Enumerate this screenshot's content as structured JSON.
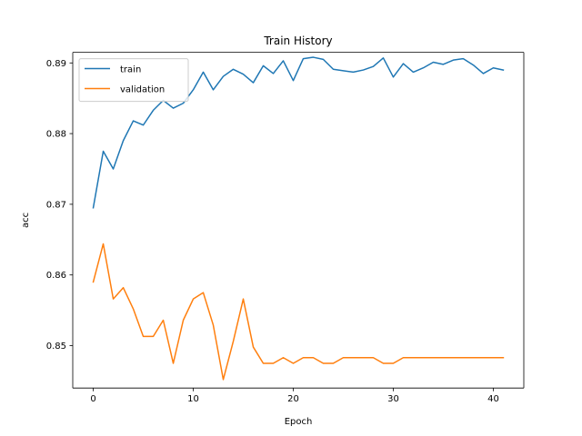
{
  "chart_data": {
    "type": "line",
    "title": "Train History",
    "xlabel": "Epoch",
    "ylabel": "acc",
    "xlim": [
      -2.05,
      43.05
    ],
    "ylim": [
      0.844,
      0.8915
    ],
    "xticks": [
      0,
      10,
      20,
      30,
      40
    ],
    "xtick_labels": [
      "0",
      "10",
      "20",
      "30",
      "40"
    ],
    "yticks": [
      0.85,
      0.86,
      0.87,
      0.88,
      0.89
    ],
    "ytick_labels": [
      "0.85",
      "0.86",
      "0.87",
      "0.88",
      "0.89"
    ],
    "grid": false,
    "legend_position": "top-left",
    "x": [
      0,
      1,
      2,
      3,
      4,
      5,
      6,
      7,
      8,
      9,
      10,
      11,
      12,
      13,
      14,
      15,
      16,
      17,
      18,
      19,
      20,
      21,
      22,
      23,
      24,
      25,
      26,
      27,
      28,
      29,
      30,
      31,
      32,
      33,
      34,
      35,
      36,
      37,
      38,
      39,
      40,
      41
    ],
    "series": [
      {
        "name": "train",
        "color": "#1f77b4",
        "values": [
          0.8695,
          0.8775,
          0.875,
          0.879,
          0.8818,
          0.8812,
          0.8833,
          0.8847,
          0.8836,
          0.8843,
          0.8862,
          0.8887,
          0.8862,
          0.8881,
          0.8891,
          0.8884,
          0.8872,
          0.8896,
          0.8885,
          0.8903,
          0.8875,
          0.8906,
          0.8908,
          0.8905,
          0.8891,
          0.8889,
          0.8887,
          0.889,
          0.8895,
          0.8907,
          0.888,
          0.8899,
          0.8887,
          0.8893,
          0.8901,
          0.8898,
          0.8904,
          0.8906,
          0.8897,
          0.8885,
          0.8893,
          0.889
        ]
      },
      {
        "name": "validation",
        "color": "#ff7f0e",
        "values": [
          0.859,
          0.8644,
          0.8566,
          0.8582,
          0.8552,
          0.8513,
          0.8513,
          0.8536,
          0.8475,
          0.8536,
          0.8566,
          0.8575,
          0.8529,
          0.8452,
          0.8506,
          0.8566,
          0.8498,
          0.8475,
          0.8475,
          0.8483,
          0.8475,
          0.8483,
          0.8483,
          0.8475,
          0.8475,
          0.8483,
          0.8483,
          0.8483,
          0.8483,
          0.8475,
          0.8475,
          0.8483,
          0.8483,
          0.8483,
          0.8483,
          0.8483,
          0.8483,
          0.8483,
          0.8483,
          0.8483,
          0.8483,
          0.8483
        ]
      }
    ]
  }
}
